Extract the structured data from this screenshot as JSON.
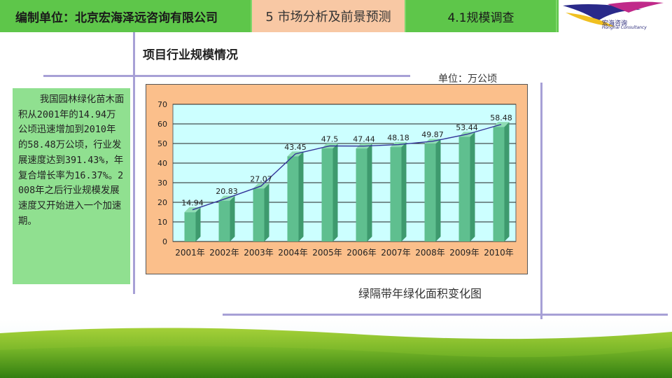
{
  "header": {
    "company": "编制单位：北京宏海泽远咨询有限公司",
    "section": "5 市场分析及前景预测",
    "subsection": "4.1规模调查",
    "logo_text": "宏海咨询",
    "logo_sub": "Honghai Consultancy"
  },
  "main": {
    "title": "项目行业规模情况",
    "unit": "单位：万公顷",
    "caption": "绿隔带年绿化面积变化图",
    "side_text": "我国园林绿化苗木面积从2001年的14.94万公顷迅速增加到2010年的58.48万公顷，行业发展速度达到391.43%，年复合增长率为16.37%。2008年之后行业规模发展速度又开始进入一个加速期。"
  },
  "colors": {
    "header_green": "#5ec64a",
    "header_peach": "#f8c8a4",
    "side_green": "#90e090",
    "chart_bg": "#fbbf8b",
    "plot_bg": "#ccffff",
    "bar": "#5fbf8f",
    "line": "#333399"
  },
  "chart_data": {
    "type": "bar",
    "categories": [
      "2001年",
      "2002年",
      "2003年",
      "2004年",
      "2005年",
      "2006年",
      "2007年",
      "2008年",
      "2009年",
      "2010年"
    ],
    "series": [
      {
        "values": [
          14.94,
          20.83,
          27.07,
          43.45,
          47.5,
          47.44,
          48.18,
          49.87,
          53.44,
          58.48
        ]
      }
    ],
    "data_labels": [
      "14.94",
      "20.83",
      "27.07",
      "43.45",
      "47.5",
      "47.44",
      "48.18",
      "49.87",
      "53.44",
      "58.48"
    ],
    "overlay": "trend-line",
    "yticks": [
      0,
      10,
      20,
      30,
      40,
      50,
      60,
      70
    ],
    "ylim": [
      0,
      70
    ],
    "grid": true,
    "title": "",
    "xlabel": "",
    "ylabel": ""
  }
}
